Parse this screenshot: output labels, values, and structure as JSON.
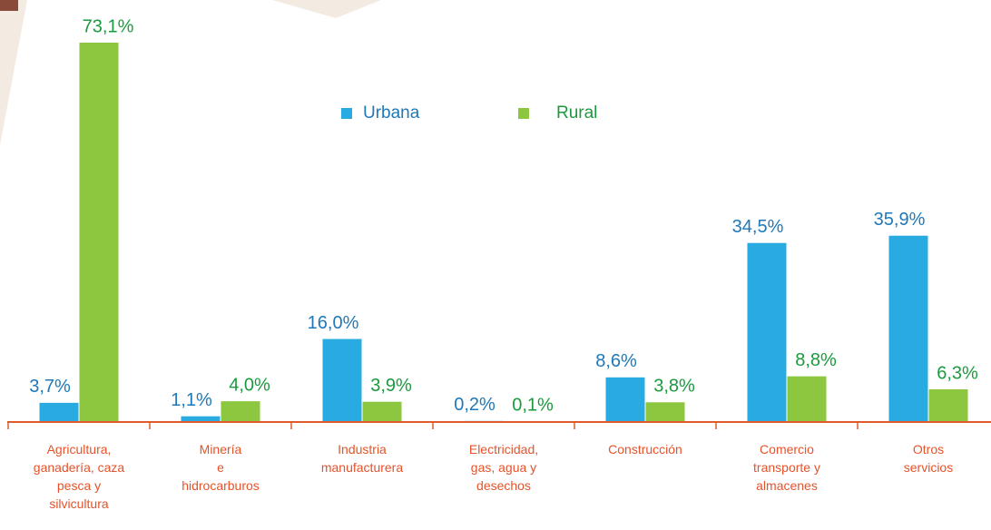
{
  "chart_data": {
    "type": "bar",
    "categories": [
      "Agricultura,\nganadería, caza\npesca y\nsilvicultura",
      "Minería\ne\nhidrocarburos",
      "Industria\nmanufacturera",
      "Electricidad,\ngas, agua y\ndesechos",
      "Construcción",
      "Comercio\ntransporte y\nalmacenes",
      "Otros\nservicios"
    ],
    "series": [
      {
        "name": "Urbana",
        "color": "#29abe2",
        "label_color": "#1f78b8",
        "values": [
          3.7,
          1.1,
          16.0,
          0.2,
          8.6,
          34.5,
          35.9
        ],
        "value_labels": [
          "3,7%",
          "1,1%",
          "16,0%",
          "0,2%",
          "8,6%",
          "34,5%",
          "35,9%"
        ]
      },
      {
        "name": "Rural",
        "color": "#8dc63f",
        "label_color": "#1b9a3e",
        "values": [
          73.1,
          4.0,
          3.9,
          0.1,
          3.8,
          8.8,
          6.3
        ],
        "value_labels": [
          "73,1%",
          "4,0%",
          "3,9%",
          "0,1%",
          "3,8%",
          "8,8%",
          "6,3%"
        ]
      }
    ],
    "axis_color": "#e05a2b",
    "category_label_color": "#e5532a"
  }
}
